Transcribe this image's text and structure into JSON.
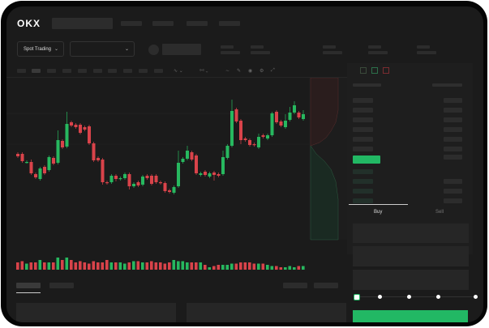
{
  "header": {
    "logo": "OKX"
  },
  "toolbar": {
    "market_select": "Spot Trading",
    "chevron_icon": "chevron-down-icon"
  },
  "order_form": {
    "tabs": [
      {
        "label": "Buy"
      },
      {
        "label": "Sell"
      }
    ],
    "active_tab": "Buy",
    "slider_level": 0
  },
  "colors": {
    "up": "#27b85f",
    "down": "#d9434a",
    "background": "#1b1b1b",
    "accent": "#22b864"
  },
  "chart_data": {
    "type": "candlestick",
    "title": "",
    "ohlc": [
      [
        68,
        65,
        70,
        63
      ],
      [
        68,
        59,
        70,
        57
      ],
      [
        57,
        58,
        60,
        56
      ],
      [
        58,
        44,
        61,
        42
      ],
      [
        43,
        39,
        45,
        37
      ],
      [
        37,
        50,
        52,
        35
      ],
      [
        52,
        44,
        54,
        42
      ],
      [
        48,
        64,
        66,
        46
      ],
      [
        63,
        56,
        65,
        54
      ],
      [
        57,
        85,
        97,
        55
      ],
      [
        84,
        76,
        86,
        74
      ],
      [
        77,
        105,
        120,
        75
      ],
      [
        107,
        103,
        109,
        101
      ],
      [
        104,
        101,
        106,
        99
      ],
      [
        104,
        94,
        106,
        92
      ],
      [
        101,
        98,
        103,
        96
      ],
      [
        102,
        81,
        104,
        79
      ],
      [
        81,
        60,
        83,
        58
      ],
      [
        63,
        60,
        65,
        58
      ],
      [
        61,
        33,
        63,
        30
      ],
      [
        33,
        32,
        35,
        30
      ],
      [
        33,
        41,
        43,
        31
      ],
      [
        41,
        37,
        43,
        34
      ],
      [
        37,
        38,
        40,
        35
      ],
      [
        38,
        43,
        45,
        36
      ],
      [
        43,
        28,
        45,
        24
      ],
      [
        28,
        31,
        33,
        26
      ],
      [
        33,
        29,
        35,
        27
      ],
      [
        30,
        40,
        42,
        28
      ],
      [
        41,
        38,
        43,
        36
      ],
      [
        41,
        31,
        43,
        29
      ],
      [
        41,
        33,
        43,
        31
      ],
      [
        33,
        32,
        35,
        30
      ],
      [
        32,
        22,
        34,
        20
      ],
      [
        23,
        21,
        25,
        19
      ],
      [
        20,
        27,
        29,
        18
      ],
      [
        28,
        57,
        72,
        26
      ],
      [
        58,
        62,
        64,
        56
      ],
      [
        62,
        72,
        78,
        60
      ],
      [
        70,
        61,
        72,
        59
      ],
      [
        66,
        44,
        68,
        42
      ],
      [
        42,
        44,
        46,
        40
      ],
      [
        46,
        42,
        48,
        40
      ],
      [
        40,
        44,
        46,
        38
      ],
      [
        45,
        42,
        47,
        35
      ],
      [
        43,
        41,
        45,
        39
      ],
      [
        43,
        64,
        72,
        41
      ],
      [
        63,
        78,
        80,
        61
      ],
      [
        78,
        121,
        135,
        76
      ],
      [
        123,
        108,
        125,
        106
      ],
      [
        109,
        85,
        111,
        80
      ],
      [
        87,
        85,
        89,
        83
      ],
      [
        85,
        79,
        87,
        77
      ],
      [
        80,
        79,
        82,
        77
      ],
      [
        76,
        89,
        93,
        74
      ],
      [
        91,
        89,
        93,
        87
      ],
      [
        87,
        91,
        93,
        85
      ],
      [
        91,
        118,
        120,
        89
      ],
      [
        120,
        107,
        122,
        105
      ],
      [
        108,
        103,
        110,
        101
      ],
      [
        101,
        109,
        117,
        99
      ],
      [
        110,
        119,
        126,
        108
      ],
      [
        119,
        128,
        133,
        117
      ],
      [
        119,
        113,
        121,
        111
      ],
      [
        111,
        117,
        122,
        109
      ]
    ],
    "volume": [
      6,
      7,
      5,
      6,
      6,
      8,
      6,
      6,
      6,
      10,
      8,
      10,
      8,
      6,
      7,
      6,
      5,
      7,
      6,
      6,
      8,
      6,
      6,
      6,
      5,
      6,
      7,
      7,
      6,
      6,
      7,
      6,
      6,
      5,
      6,
      8,
      7,
      7,
      6,
      6,
      6,
      6,
      4,
      2,
      3,
      4,
      4,
      4,
      5,
      5,
      6,
      6,
      6,
      5,
      5,
      5,
      4,
      3,
      3,
      2,
      2,
      3,
      2,
      3,
      3
    ]
  }
}
